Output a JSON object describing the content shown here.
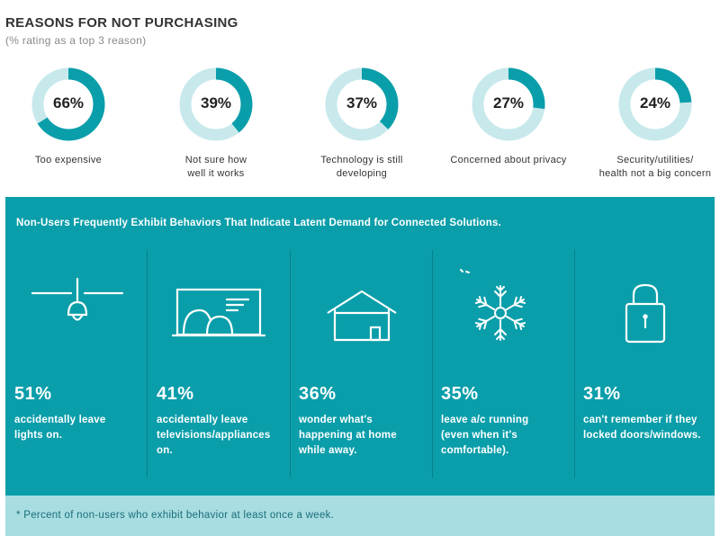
{
  "header": {
    "title": "REASONS FOR NOT PURCHASING",
    "subtitle": "(% rating as a top 3 reason)"
  },
  "colors": {
    "accent": "#0a9eaa",
    "ring_track": "#c8e9ec",
    "panel_divider": "#07818b",
    "footnote_bg": "#a8dde2"
  },
  "chart_data": {
    "type": "pie",
    "title": "REASONS FOR NOT PURCHASING",
    "subtitle": "(% rating as a top 3 reason)",
    "categories": [
      "Too expensive",
      "Not sure how\nwell it works",
      "Technology is still\ndeveloping",
      "Concerned about privacy",
      "Security/utilities/\nhealth not a big concern"
    ],
    "values": [
      66,
      39,
      37,
      27,
      24
    ],
    "value_labels": [
      "66%",
      "39%",
      "37%",
      "27%",
      "24%"
    ]
  },
  "panel": {
    "heading": "Non-Users Frequently Exhibit Behaviors That Indicate Latent Demand for Connected Solutions.",
    "items": [
      {
        "icon": "ceiling-light-icon",
        "value": "51%",
        "text": "accidentally leave\nlights on."
      },
      {
        "icon": "television-icon",
        "value": "41%",
        "text": "accidentally leave\ntelevisions/appliances\non."
      },
      {
        "icon": "house-icon",
        "value": "36%",
        "text": "wonder what's\nhappening at home\nwhile away."
      },
      {
        "icon": "snowflake-icon",
        "value": "35%",
        "text": "leave a/c running\n(even when it's\ncomfortable)."
      },
      {
        "icon": "padlock-icon",
        "value": "31%",
        "text": "can't remember if they\nlocked doors/windows."
      }
    ]
  },
  "footnote": "* Percent of non-users who exhibit behavior at least once a week."
}
